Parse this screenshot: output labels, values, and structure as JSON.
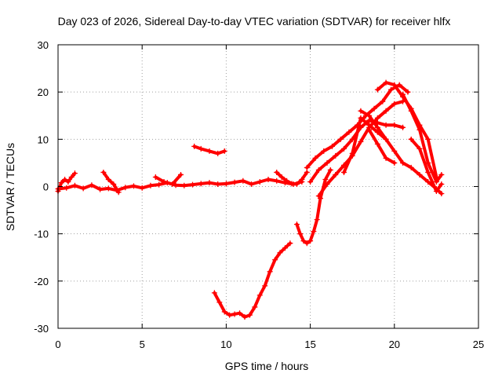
{
  "chart_data": {
    "type": "scatter",
    "title": "Day 023 of 2026, Sidereal Day-to-day VTEC variation (SDTVAR) for receiver hlfx",
    "xlabel": "GPS time / hours",
    "ylabel": "SDTVAR / TECUs",
    "xlim": [
      0,
      25
    ],
    "ylim": [
      -30,
      30
    ],
    "xticks": [
      "0",
      "5",
      "10",
      "15",
      "20",
      "25"
    ],
    "yticks": [
      "-30",
      "-20",
      "-10",
      "0",
      "10",
      "20",
      "30"
    ],
    "grid": true,
    "legend": "none",
    "marker": "plus",
    "color": "#ff0000",
    "series": [
      {
        "x": [
          0,
          0.5,
          1,
          1.5,
          2,
          2.5,
          3,
          3.5,
          4,
          4.5,
          5,
          5.5,
          6,
          6.5,
          7,
          7.5,
          8,
          8.5,
          9,
          9.5,
          10,
          10.5,
          11,
          11.5,
          12,
          12.5,
          13,
          13.5,
          14,
          14.5
        ],
        "y": [
          -0.5,
          -0.3,
          0.2,
          -0.4,
          0.3,
          -0.6,
          -0.4,
          -0.8,
          -0.2,
          0.1,
          -0.3,
          0.2,
          0.4,
          0.8,
          0.3,
          0.2,
          0.4,
          0.6,
          0.8,
          0.5,
          0.6,
          0.9,
          1.2,
          0.5,
          1.0,
          1.5,
          1.2,
          0.8,
          0.5,
          1.0
        ]
      },
      {
        "x": [
          0,
          0.2,
          0.4,
          0.6,
          0.8,
          1.0
        ],
        "y": [
          -1.0,
          0.8,
          1.5,
          1.0,
          2.0,
          2.8
        ]
      },
      {
        "x": [
          2.7,
          3.0,
          3.3,
          3.6
        ],
        "y": [
          3.0,
          1.5,
          0.5,
          -1.2
        ]
      },
      {
        "x": [
          5.8,
          6.3,
          6.8,
          7.3
        ],
        "y": [
          2.0,
          1.0,
          0.5,
          2.5
        ]
      },
      {
        "x": [
          8.1,
          8.5,
          9.0,
          9.5,
          9.9
        ],
        "y": [
          8.5,
          8.0,
          7.5,
          7.0,
          7.5
        ]
      },
      {
        "x": [
          9.3,
          9.6,
          9.9,
          10.2,
          10.5,
          10.8,
          11.1,
          11.4,
          11.7,
          12.0,
          12.3,
          12.6,
          12.9,
          13.2,
          13.5,
          13.8
        ],
        "y": [
          -22.5,
          -24.5,
          -26.5,
          -27.2,
          -27.0,
          -26.8,
          -27.6,
          -27.2,
          -25.5,
          -23.0,
          -21.0,
          -18.0,
          -15.5,
          -14.0,
          -13.0,
          -12.0
        ]
      },
      {
        "x": [
          13.0,
          13.3,
          13.6,
          13.9,
          14.2,
          14.5,
          14.8
        ],
        "y": [
          3.0,
          2.0,
          1.2,
          0.6,
          0.5,
          1.5,
          3.0
        ]
      },
      {
        "x": [
          14.2,
          14.4,
          14.6,
          14.8,
          15.0,
          15.2,
          15.4,
          15.6,
          15.9,
          16.2
        ],
        "y": [
          -8.0,
          -10.0,
          -11.5,
          -12.0,
          -11.5,
          -9.5,
          -7.0,
          -2.5,
          1.5,
          3.5
        ]
      },
      {
        "x": [
          14.8,
          15.3,
          15.8,
          16.3,
          16.8,
          17.3,
          17.8,
          18.3,
          18.8,
          19.3,
          19.8,
          20.3,
          20.8
        ],
        "y": [
          4.0,
          6.0,
          7.5,
          8.5,
          10.0,
          11.5,
          13.0,
          15.0,
          16.5,
          18.0,
          20.5,
          21.5,
          20.0
        ]
      },
      {
        "x": [
          15.0,
          15.5,
          16.0,
          16.5,
          17.0,
          17.5,
          18.0,
          18.5,
          19.0,
          19.5,
          20.0,
          20.5
        ],
        "y": [
          1.0,
          3.5,
          5.0,
          6.5,
          8.0,
          10.0,
          12.5,
          14.0,
          13.5,
          13.0,
          13.0,
          12.5
        ]
      },
      {
        "x": [
          15.5,
          16.0,
          16.5,
          17.0,
          17.5,
          18.0,
          18.5,
          19.0,
          19.5,
          20.0,
          20.5
        ],
        "y": [
          -2.0,
          0.5,
          2.5,
          4.5,
          6.5,
          9.5,
          12.5,
          14.5,
          16.0,
          17.5,
          18.0
        ]
      },
      {
        "x": [
          17.0,
          17.5,
          18.0,
          18.5,
          19.0,
          19.5
        ],
        "y": [
          3.0,
          7.0,
          14.5,
          13.0,
          11.5,
          10.0
        ]
      },
      {
        "x": [
          18.0,
          18.5,
          19.0,
          19.5,
          20.0,
          20.5,
          21.0,
          21.5,
          22.0,
          22.5,
          22.8
        ],
        "y": [
          16.0,
          15.0,
          12.5,
          10.0,
          7.5,
          5.0,
          4.0,
          2.5,
          1.0,
          -0.5,
          -1.5
        ]
      },
      {
        "x": [
          18.5,
          19.0,
          19.5,
          20.0
        ],
        "y": [
          12.0,
          9.0,
          6.0,
          5.0
        ]
      },
      {
        "x": [
          19.0,
          19.5,
          20.0,
          20.5,
          21.0,
          21.5,
          22.0,
          22.5
        ],
        "y": [
          20.5,
          22.0,
          21.5,
          19.0,
          16.5,
          13.0,
          10.0,
          2.0
        ]
      },
      {
        "x": [
          20.5,
          21.0,
          21.5,
          22.0,
          22.5,
          22.8
        ],
        "y": [
          19.5,
          16.0,
          12.0,
          5.0,
          1.0,
          2.5
        ]
      },
      {
        "x": [
          21.0,
          21.5,
          22.0,
          22.5,
          22.8
        ],
        "y": [
          10.0,
          8.0,
          3.0,
          -1.0,
          0.5
        ]
      }
    ]
  }
}
